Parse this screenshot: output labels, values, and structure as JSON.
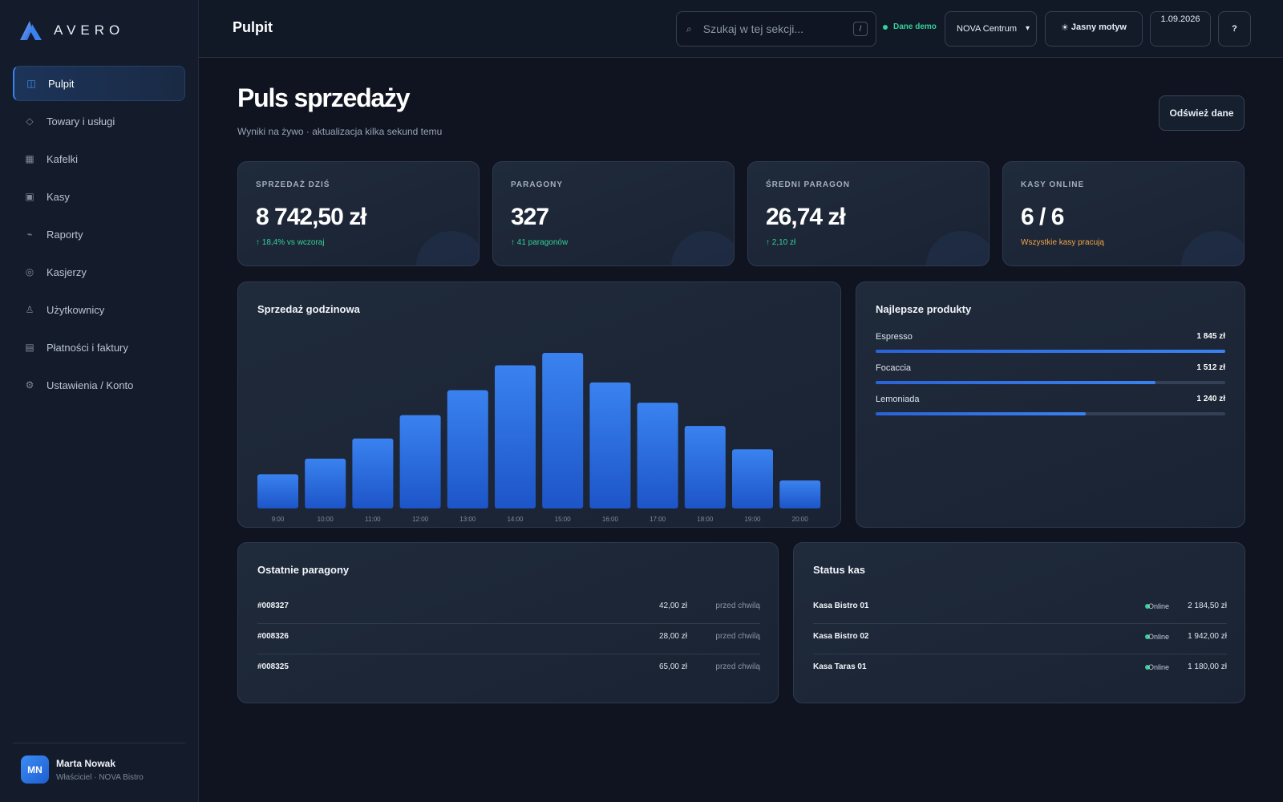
{
  "brand": {
    "name": "AVERO"
  },
  "sidebar": {
    "items": [
      {
        "label": "Pulpit",
        "icon": "◫",
        "icon_name": "dashboard-icon",
        "active": true
      },
      {
        "label": "Towary i usługi",
        "icon": "◇",
        "icon_name": "products-icon"
      },
      {
        "label": "Kafelki",
        "icon": "▦",
        "icon_name": "tiles-icon"
      },
      {
        "label": "Kasy",
        "icon": "▣",
        "icon_name": "register-icon"
      },
      {
        "label": "Raporty",
        "icon": "⌁",
        "icon_name": "reports-icon"
      },
      {
        "label": "Kasjerzy",
        "icon": "◎",
        "icon_name": "cashiers-icon"
      },
      {
        "label": "Użytkownicy",
        "icon": "♙",
        "icon_name": "users-icon"
      },
      {
        "label": "Płatności i faktury",
        "icon": "▤",
        "icon_name": "payments-icon"
      },
      {
        "label": "Ustawienia / Konto",
        "icon": "⚙",
        "icon_name": "settings-icon"
      }
    ],
    "user": {
      "initials": "MN",
      "name": "Marta Nowak",
      "role": "Właściciel · NOVA Bistro"
    }
  },
  "header": {
    "title": "Pulpit",
    "search_placeholder": "Szukaj w tej sekcji...",
    "search_shortcut": "/",
    "demo_label": "Dane demo",
    "store": "NOVA Centrum",
    "theme_label": "Jasny motyw",
    "date": "1.09.2026",
    "help": "?"
  },
  "main": {
    "title": "Puls sprzedaży",
    "subtitle": "Wyniki na żywo · aktualizacja kilka sekund temu",
    "refresh_label": "Odśwież dane",
    "kpis": [
      {
        "label": "SPRZEDAŻ DZIŚ",
        "value": "8 742,50 zł",
        "delta": "↑ 18,4% vs wczoraj",
        "tone": "positive"
      },
      {
        "label": "PARAGONY",
        "value": "327",
        "delta": "↑ 41 paragonów",
        "tone": "positive"
      },
      {
        "label": "ŚREDNI PARAGON",
        "value": "26,74 zł",
        "delta": "↑ 2,10 zł",
        "tone": "positive"
      },
      {
        "label": "KASY ONLINE",
        "value": "6 / 6",
        "delta": "Wszystkie kasy pracują",
        "tone": "warning"
      }
    ],
    "hourly_title": "Sprzedaż godzinowa",
    "products_title": "Najlepsze produkty",
    "products": [
      {
        "name": "Espresso",
        "value": "1 845 zł",
        "share": 1.0
      },
      {
        "name": "Focaccia",
        "value": "1 512 zł",
        "share": 0.8
      },
      {
        "name": "Lemoniada",
        "value": "1 240 zł",
        "share": 0.6
      }
    ],
    "receipts_title": "Ostatnie paragony",
    "receipts": [
      {
        "id": "#008327",
        "amount": "42,00 zł",
        "time": "przed chwilą"
      },
      {
        "id": "#008326",
        "amount": "28,00 zł",
        "time": "przed chwilą"
      },
      {
        "id": "#008325",
        "amount": "65,00 zł",
        "time": "przed chwilą"
      }
    ],
    "kasy_title": "Status kas",
    "kasy": [
      {
        "name": "Kasa Bistro 01",
        "status": "Online",
        "amount": "2 184,50 zł"
      },
      {
        "name": "Kasa Bistro 02",
        "status": "Online",
        "amount": "1 942,00 zł"
      },
      {
        "name": "Kasa Taras 01",
        "status": "Online",
        "amount": "1 180,00 zł"
      }
    ]
  },
  "colors": {
    "accent": "#3a82f0",
    "positive": "#35d09a",
    "warning": "#f2a445",
    "background": "#0f1420",
    "card": "#1d2738"
  },
  "chart_data": {
    "type": "bar",
    "title": "Sprzedaż godzinowa",
    "categories": [
      "9:00",
      "10:00",
      "11:00",
      "12:00",
      "13:00",
      "14:00",
      "15:00",
      "16:00",
      "17:00",
      "18:00",
      "19:00",
      "20:00"
    ],
    "values": [
      22,
      32,
      45,
      60,
      76,
      92,
      100,
      81,
      68,
      53,
      38,
      18
    ],
    "ylim": [
      0,
      100
    ],
    "xlabel": "",
    "ylabel": "",
    "grid": false,
    "legend": "none"
  }
}
